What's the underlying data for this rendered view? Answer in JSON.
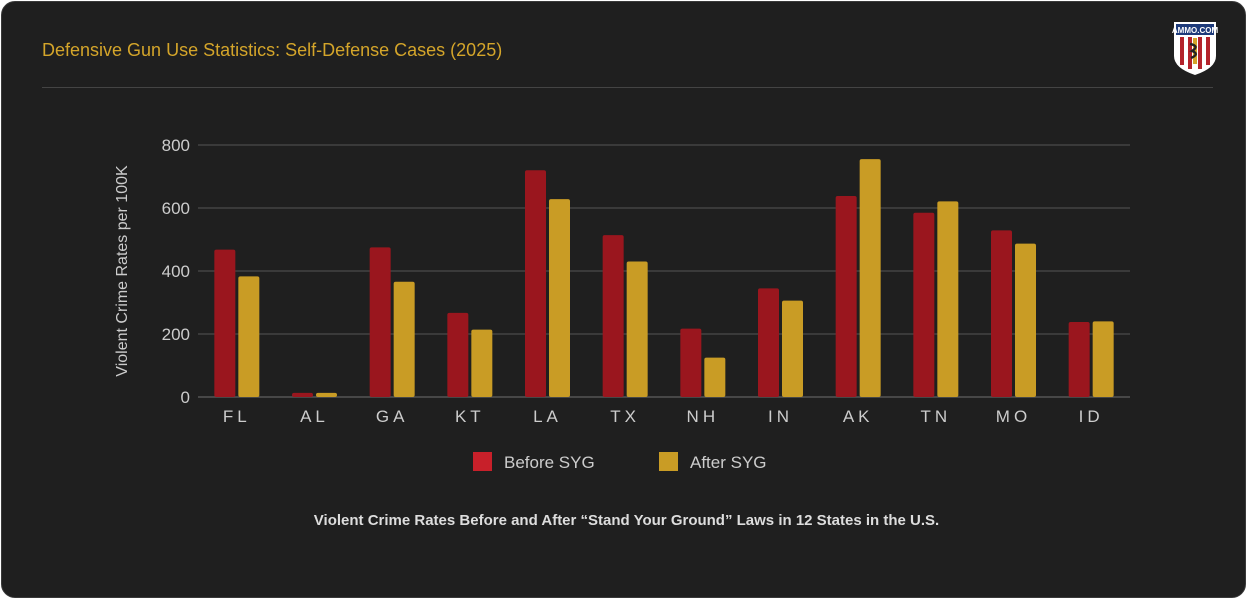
{
  "header": {
    "title": "Defensive Gun Use Statistics: Self-Defense Cases (2025)",
    "logo_text": "AMMO.COM"
  },
  "caption": "Violent Crime Rates Before and After “Stand Your Ground” Laws in 12 States in the U.S.",
  "chart_data": {
    "type": "bar",
    "title": "",
    "ylabel": "Violent Crime Rates per 100K",
    "xlabel": "",
    "ylim": [
      0,
      800
    ],
    "yticks": [
      "0",
      "200",
      "400",
      "600",
      "800"
    ],
    "grid": true,
    "legend_position": "bottom",
    "categories": [
      "FL",
      "AL",
      "GA",
      "KT",
      "LA",
      "TX",
      "NH",
      "IN",
      "AK",
      "TN",
      "MO",
      "ID"
    ],
    "series": [
      {
        "name": "Before SYG",
        "color": "#9a161e",
        "values": [
          468,
          13,
          475,
          267,
          720,
          514,
          217,
          345,
          638,
          585,
          529,
          238
        ]
      },
      {
        "name": "After SYG",
        "color": "#c99c25",
        "values": [
          383,
          13,
          366,
          214,
          628,
          430,
          125,
          306,
          755,
          621,
          487,
          240
        ]
      }
    ]
  }
}
